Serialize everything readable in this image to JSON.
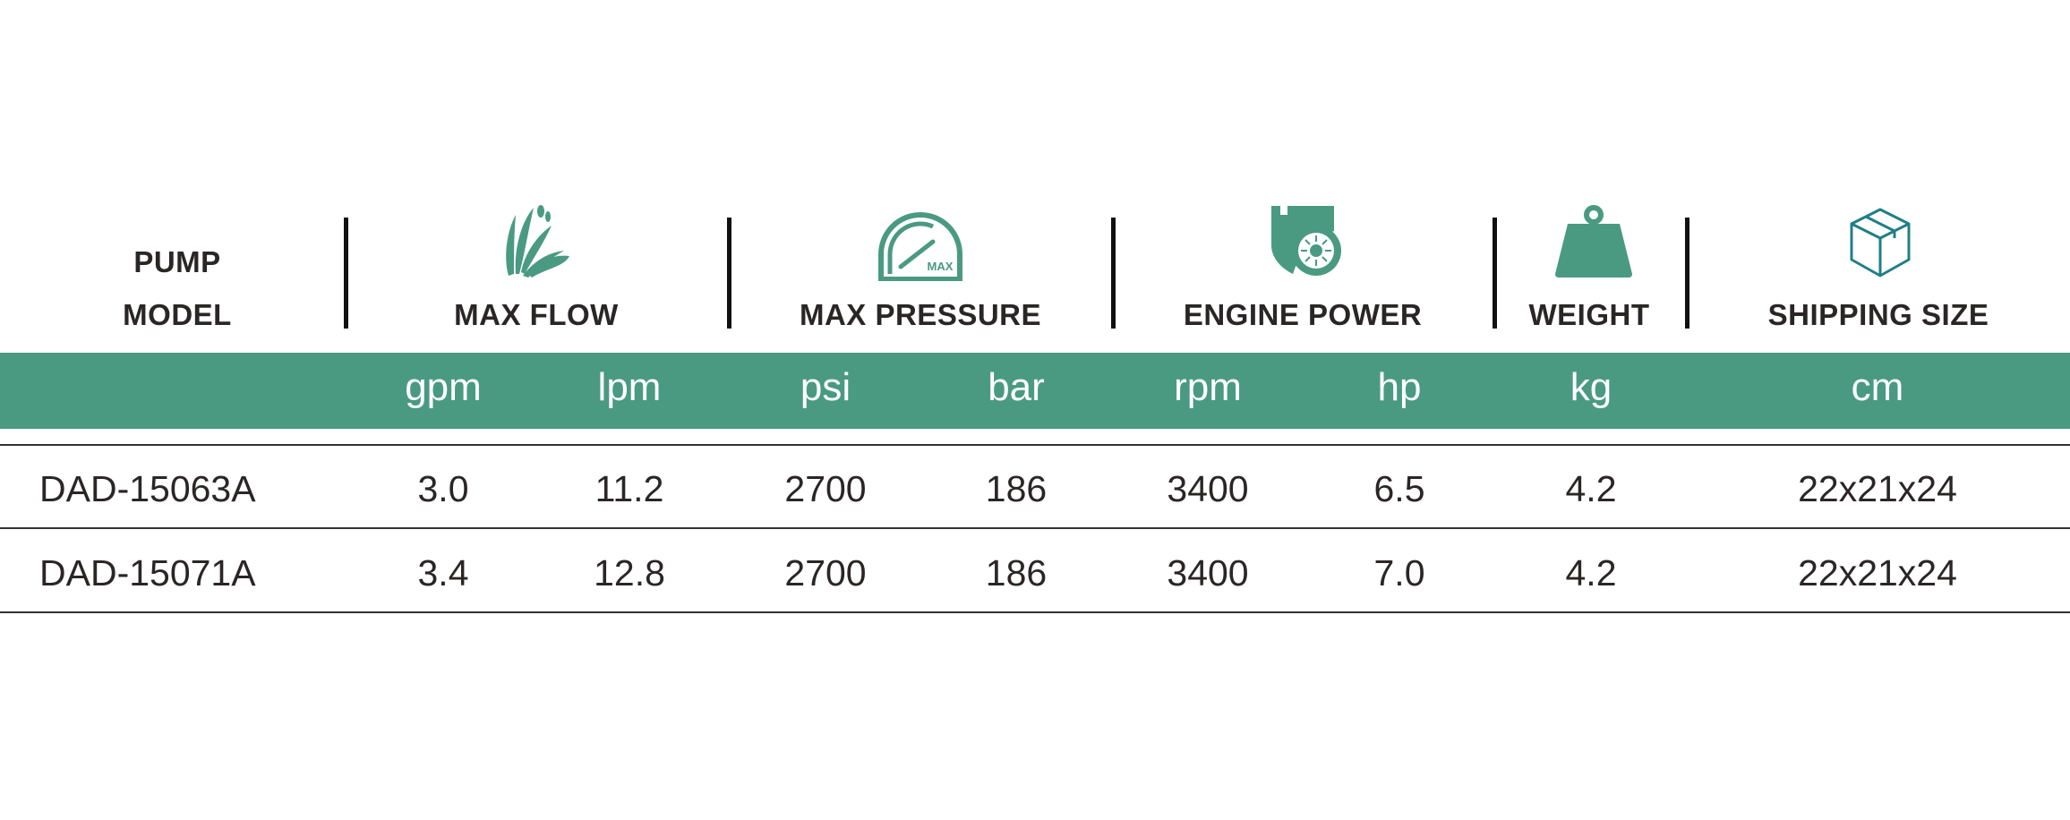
{
  "header": {
    "pump_model": [
      "PUMP",
      "MODEL"
    ],
    "max_flow": "MAX FLOW",
    "max_pressure": "MAX PRESSURE",
    "pressure_icon_text": "MAX",
    "engine_power": "ENGINE POWER",
    "weight": "WEIGHT",
    "shipping_size": "SHIPPING SIZE"
  },
  "units": [
    "gpm",
    "lpm",
    "psi",
    "bar",
    "rpm",
    "hp",
    "kg",
    "cm"
  ],
  "rows": [
    {
      "model": "DAD-15063A",
      "gpm": "3.0",
      "lpm": "11.2",
      "psi": "2700",
      "bar": "186",
      "rpm": "3400",
      "hp": "6.5",
      "kg": "4.2",
      "cm": "22x21x24"
    },
    {
      "model": "DAD-15071A",
      "gpm": "3.4",
      "lpm": "12.8",
      "psi": "2700",
      "bar": "186",
      "rpm": "3400",
      "hp": "7.0",
      "kg": "4.2",
      "cm": "22x21x24"
    }
  ],
  "colors": {
    "accent": "#4a9a82",
    "box_icon": "#1f7f86",
    "text": "#2b2626"
  },
  "icons": [
    "water-splash-icon",
    "pressure-gauge-icon",
    "engine-icon",
    "weight-icon",
    "box-icon"
  ]
}
